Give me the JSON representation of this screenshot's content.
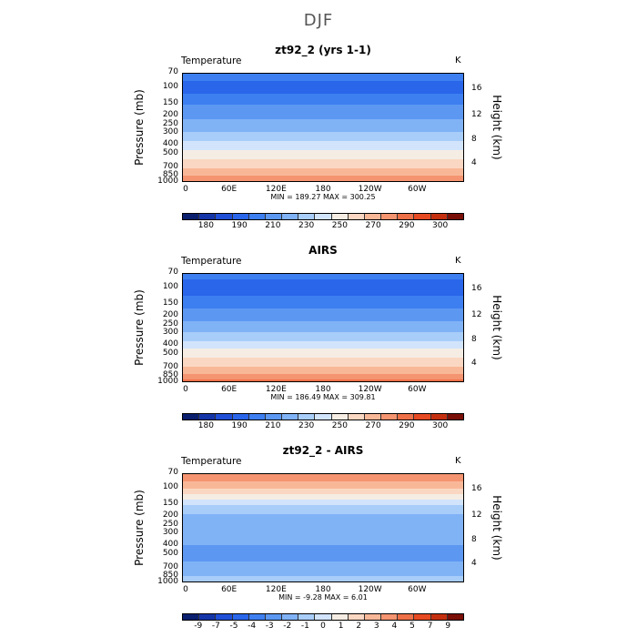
{
  "figure_title": "DJF",
  "panels": [
    {
      "title": "zt92_2 (yrs 1-1)",
      "variable": "Temperature",
      "units": "K",
      "stats": "MIN = 189.27  MAX = 300.25",
      "colorbar_labels": [
        "180",
        "190",
        "210",
        "230",
        "250",
        "270",
        "290",
        "300"
      ]
    },
    {
      "title": "AIRS",
      "variable": "Temperature",
      "units": "K",
      "stats": "MIN = 186.49  MAX = 309.81",
      "colorbar_labels": [
        "180",
        "190",
        "210",
        "230",
        "250",
        "270",
        "290",
        "300"
      ]
    },
    {
      "title": "zt92_2 - AIRS",
      "variable": "Temperature",
      "units": "K",
      "stats": "MIN = -9.28  MAX =   6.01",
      "colorbar_labels": [
        "-9",
        "-7",
        "-5",
        "-4",
        "-3",
        "-2",
        "-1",
        "0",
        "1",
        "2",
        "3",
        "4",
        "5",
        "7",
        "9"
      ]
    }
  ],
  "axes": {
    "y_left_label": "Pressure (mb)",
    "y_right_label": "Height (km)",
    "pressure_ticks": [
      "70",
      "100",
      "150",
      "200",
      "250",
      "300",
      "400",
      "500",
      "700",
      "850",
      "1000"
    ],
    "height_ticks": [
      "16",
      "12",
      "8",
      "4"
    ],
    "lon_ticks": [
      "0",
      "60E",
      "120E",
      "180",
      "120W",
      "60W"
    ]
  },
  "colors": {
    "temperature_scale": [
      "#0a1f6e",
      "#1435a8",
      "#1f4fd6",
      "#2a66ea",
      "#3d7ff0",
      "#5c98f2",
      "#80b2f6",
      "#a8cdf9",
      "#d2e4fb",
      "#f5ede4",
      "#fad7c2",
      "#f8b898",
      "#f49470",
      "#ee7048",
      "#e64a22",
      "#c4300f",
      "#7a0f07"
    ],
    "difference_scale": [
      "#0a1f6e",
      "#1435a8",
      "#1f4fd6",
      "#2a66ea",
      "#3d7ff0",
      "#5c98f2",
      "#80b2f6",
      "#a8cdf9",
      "#d2e4fb",
      "#f5ede4",
      "#fad7c2",
      "#f8b898",
      "#f49470",
      "#ee7048",
      "#e64a22",
      "#c4300f",
      "#7a0f07"
    ]
  },
  "chart_data": [
    {
      "type": "heatmap",
      "title": "zt92_2 (yrs 1-1)",
      "subtitle": "DJF",
      "variable": "Temperature",
      "units": "K",
      "x_dimension": "longitude",
      "y_dimension": "pressure (mb)",
      "xlim": [
        0,
        360
      ],
      "ylim": [
        1000,
        70
      ],
      "y_scale": "log",
      "min": 189.27,
      "max": 300.25,
      "contour_levels": [
        180,
        185,
        190,
        200,
        210,
        220,
        230,
        240,
        250,
        260,
        270,
        280,
        290,
        295,
        300
      ],
      "approx_zonal_profile": {
        "pressure": [
          70,
          100,
          150,
          200,
          250,
          300,
          400,
          500,
          700,
          850,
          1000
        ],
        "temperature": [
          205,
          196,
          210,
          218,
          225,
          231,
          245,
          255,
          270,
          282,
          292
        ]
      }
    },
    {
      "type": "heatmap",
      "title": "AIRS",
      "subtitle": "DJF",
      "variable": "Temperature",
      "units": "K",
      "x_dimension": "longitude",
      "y_dimension": "pressure (mb)",
      "xlim": [
        0,
        360
      ],
      "ylim": [
        1000,
        70
      ],
      "y_scale": "log",
      "min": 186.49,
      "max": 309.81,
      "contour_levels": [
        180,
        185,
        190,
        200,
        210,
        220,
        230,
        240,
        250,
        260,
        270,
        280,
        290,
        295,
        300
      ],
      "approx_zonal_profile": {
        "pressure": [
          70,
          100,
          150,
          200,
          250,
          300,
          400,
          500,
          700,
          850,
          1000
        ],
        "temperature": [
          205,
          193,
          208,
          217,
          225,
          232,
          246,
          256,
          271,
          283,
          295
        ]
      }
    },
    {
      "type": "heatmap",
      "title": "zt92_2 - AIRS",
      "subtitle": "DJF",
      "variable": "Temperature",
      "units": "K",
      "x_dimension": "longitude",
      "y_dimension": "pressure (mb)",
      "xlim": [
        0,
        360
      ],
      "ylim": [
        1000,
        70
      ],
      "y_scale": "log",
      "min": -9.28,
      "max": 6.01,
      "contour_levels": [
        -9,
        -7,
        -5,
        -4,
        -3,
        -2,
        -1,
        0,
        1,
        2,
        3,
        4,
        5,
        7,
        9
      ],
      "approx_zonal_profile": {
        "pressure": [
          70,
          100,
          150,
          200,
          250,
          300,
          400,
          500,
          700,
          850,
          1000
        ],
        "difference": [
          5,
          3,
          0,
          -1.5,
          -2,
          -2,
          -2,
          -2.5,
          -1.5,
          -1,
          0
        ]
      }
    }
  ]
}
